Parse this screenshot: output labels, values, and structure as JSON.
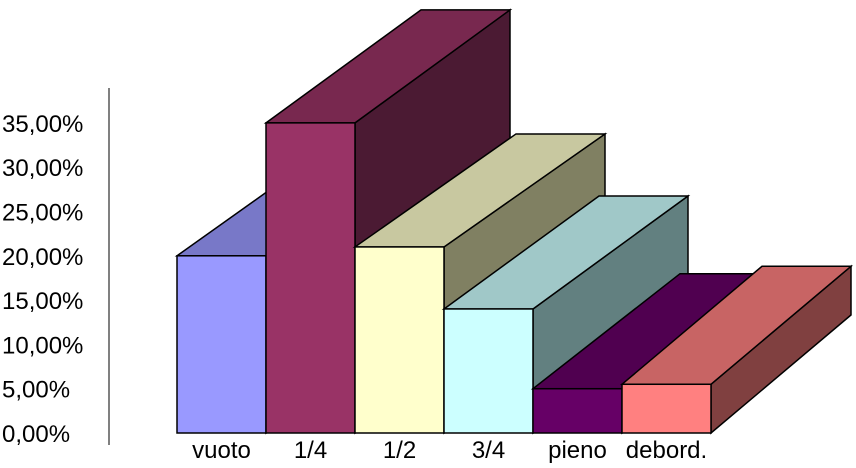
{
  "chart_data": {
    "type": "bar",
    "style": "3d-stacked-depth",
    "title": "",
    "xlabel": "",
    "ylabel": "",
    "categories": [
      "vuoto",
      "1/4",
      "1/2",
      "3/4",
      "pieno",
      "debord."
    ],
    "values": [
      20,
      35,
      21,
      14,
      5,
      5.5
    ],
    "ylim": [
      0,
      35
    ],
    "yticks": [
      "0,00%",
      "5,00%",
      "10,00%",
      "15,00%",
      "20,00%",
      "25,00%",
      "30,00%",
      "35,00%"
    ],
    "grid": false,
    "legend": "none",
    "colors": {
      "front": [
        "#9999ff",
        "#993366",
        "#ffffcc",
        "#ccffff",
        "#660066",
        "#ff8080"
      ],
      "top": [
        "#7878c8",
        "#78284f",
        "#c8c8a0",
        "#a0c8c8",
        "#500050",
        "#c86464"
      ],
      "side": [
        "#5a5a96",
        "#4b1a33",
        "#808062",
        "#628080",
        "#330033",
        "#804040"
      ],
      "outline": "#000000"
    }
  }
}
